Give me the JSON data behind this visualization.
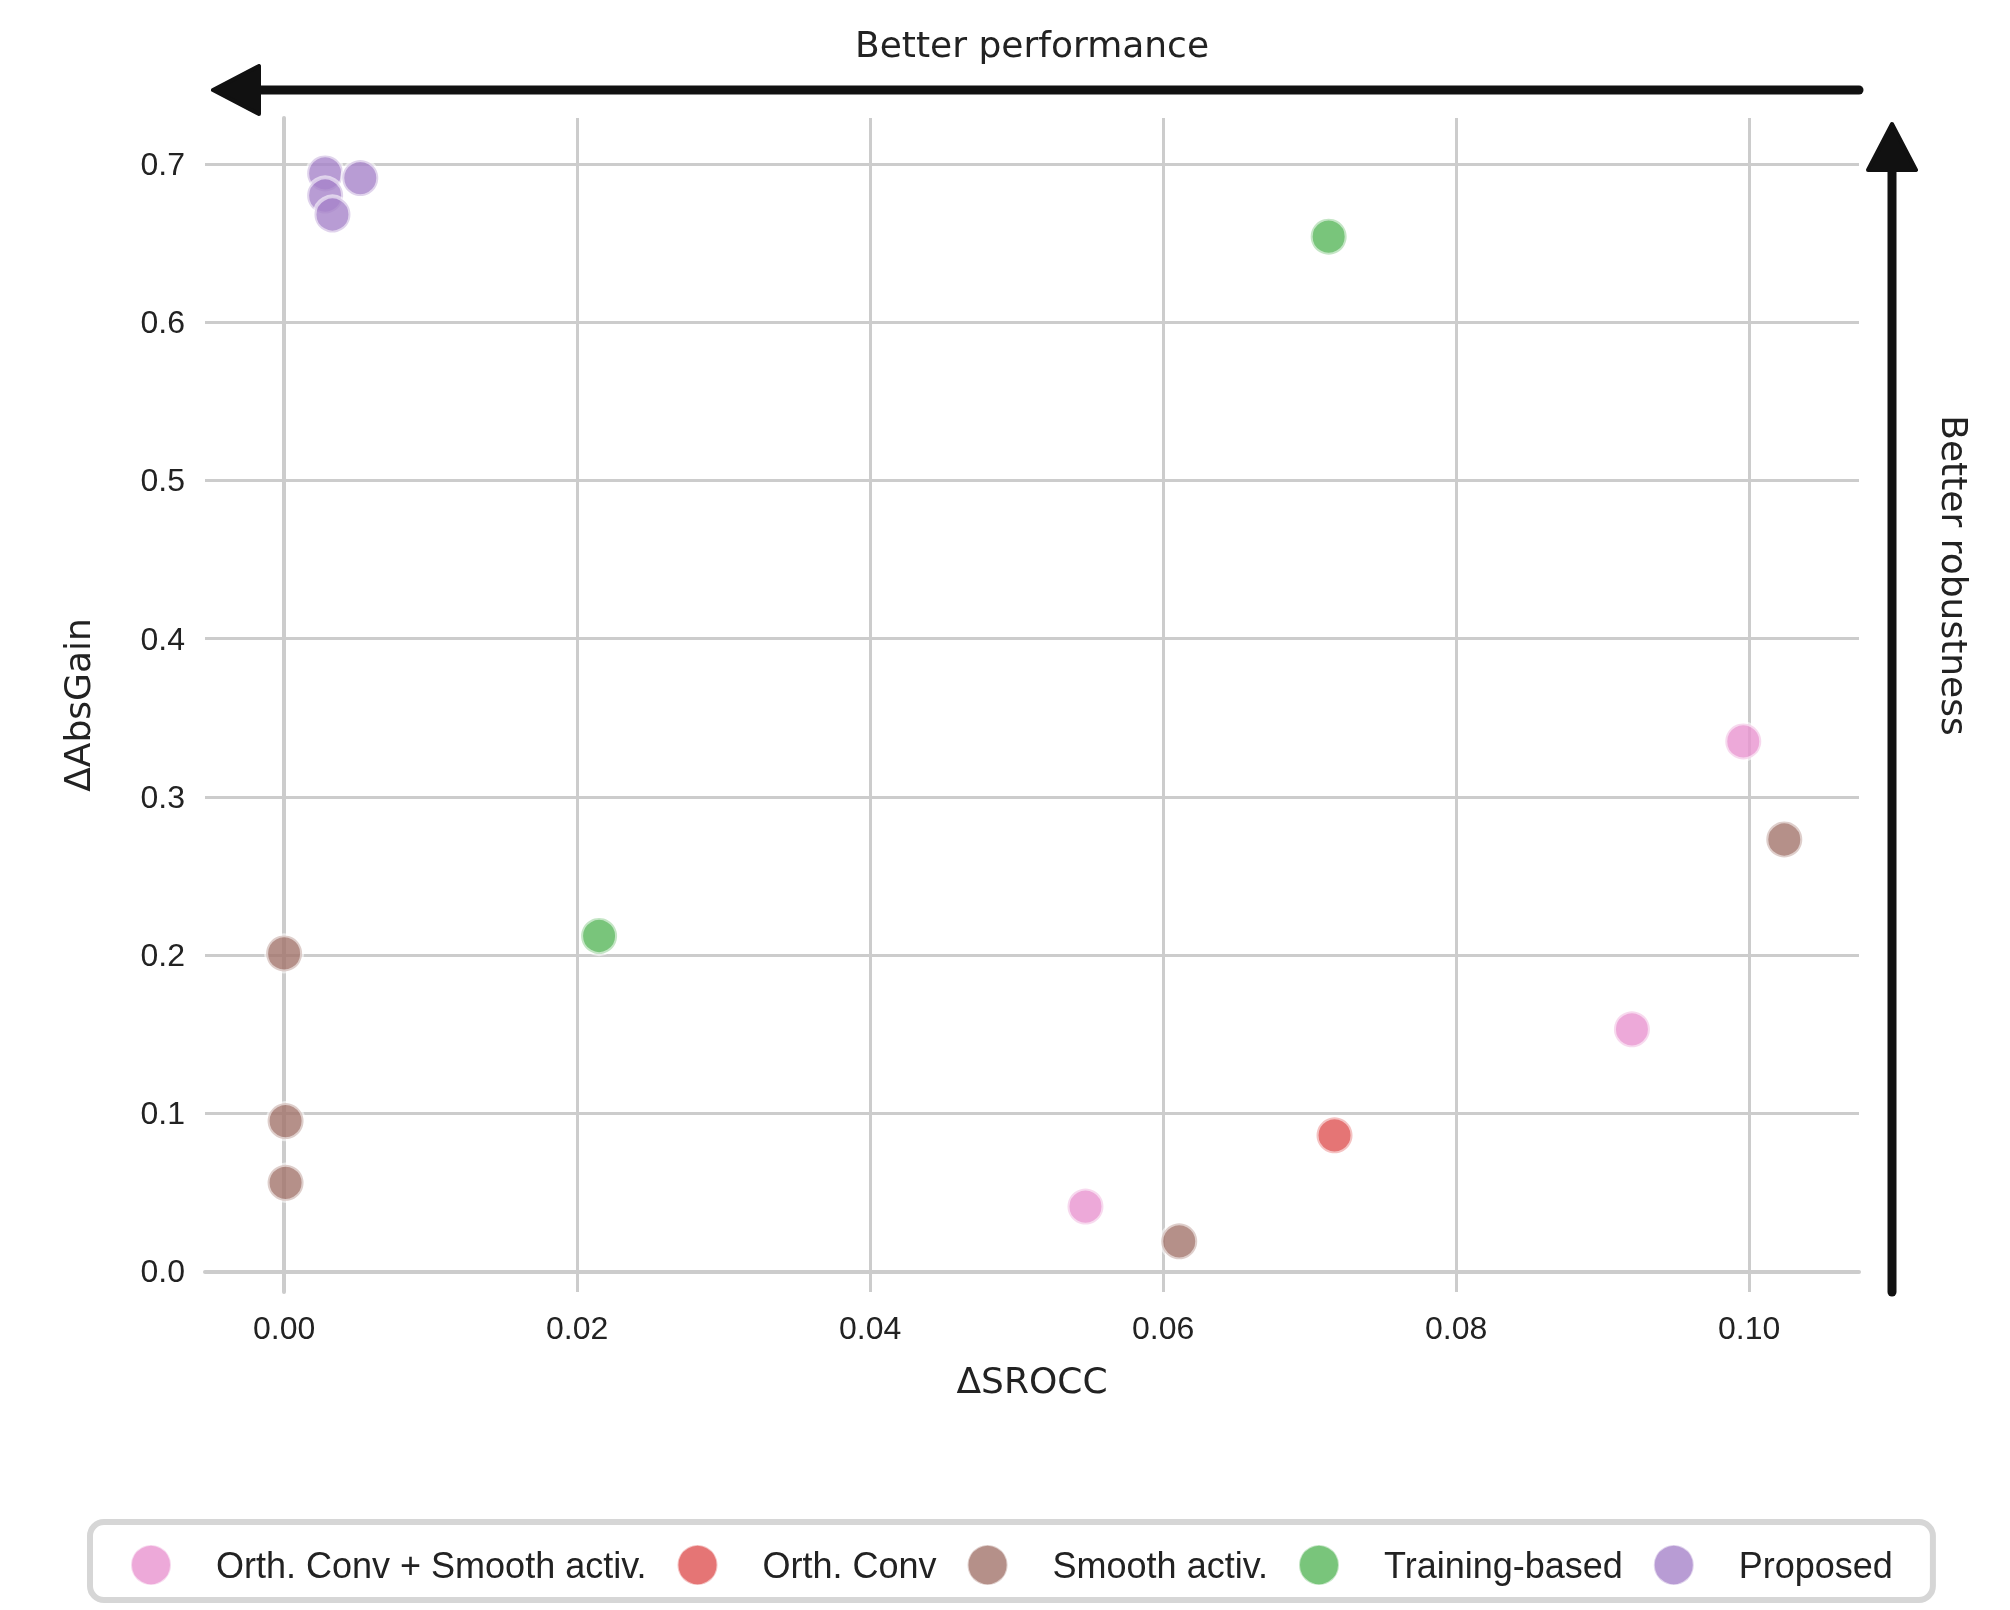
{
  "chart_data": {
    "type": "scatter",
    "xlabel": "ΔSROCC",
    "ylabel": "ΔAbsGain",
    "annotations": [
      "Better performance",
      "Better robustness"
    ],
    "xlim": [
      -0.0054,
      0.1075
    ],
    "xticks": [
      {
        "value": 0,
        "label": "0.00"
      },
      {
        "value": 0.02,
        "label": "0.02"
      },
      {
        "value": 0.04,
        "label": "0.04"
      },
      {
        "value": 0.06,
        "label": "0.06"
      },
      {
        "value": 0.08,
        "label": "0.08"
      },
      {
        "value": 0.1,
        "label": "0.10"
      }
    ],
    "ylim": [
      -0.013,
      0.729
    ],
    "yticks": [
      {
        "value": 0,
        "label": "0.0"
      },
      0.1,
      0.2,
      0.3,
      0.4,
      0.5,
      0.6,
      0.7
    ],
    "grid": true,
    "legend": "bottom",
    "marker": "circle",
    "series": [
      {
        "name": "Orth. Conv + Smooth activ.",
        "color": "#e994cf",
        "x": [
          0.0547,
          0.092,
          0.0996
        ],
        "values": [
          0.041,
          0.153,
          0.335
        ]
      },
      {
        "name": "Orth. Conv",
        "color": "#de5253",
        "x": [
          0.0717
        ],
        "values": [
          0.086
        ]
      },
      {
        "name": "Smooth activ.",
        "color": "#a3746b",
        "x": [
          0.0,
          0.0001,
          0.0001,
          0.0611,
          0.1024
        ],
        "values": [
          0.201,
          0.095,
          0.056,
          0.019,
          0.273
        ]
      },
      {
        "name": "Training-based",
        "color": "#57b65a",
        "x": [
          0.0713,
          0.0215
        ],
        "values": [
          0.654,
          0.212
        ]
      },
      {
        "name": "Proposed",
        "color": "#a683c9",
        "x": [
          0.0028,
          0.0052,
          0.0028,
          0.0033
        ],
        "values": [
          0.694,
          0.691,
          0.68,
          0.668
        ]
      }
    ]
  }
}
